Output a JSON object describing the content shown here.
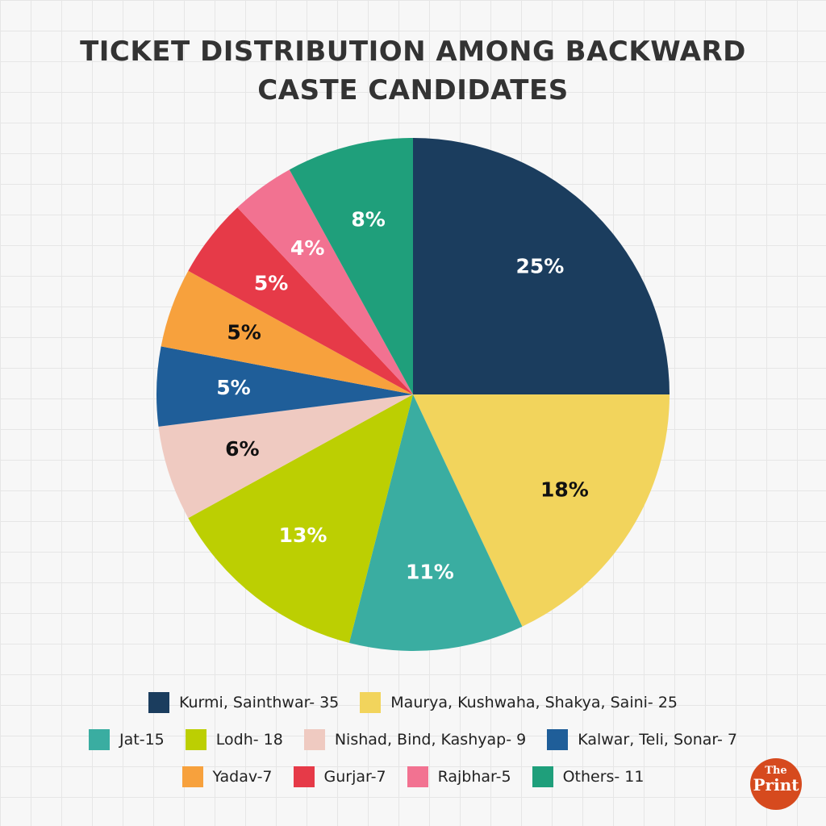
{
  "chart_data": {
    "type": "pie",
    "title": "TICKET DISTRIBUTION AMONG BACKWARD CASTE CANDIDATES",
    "categories": [
      "Kurmi, Sainthwar- 35",
      "Maurya, Kushwaha, Shakya, Saini- 25",
      "Jat-15",
      "Lodh- 18",
      "Nishad, Bind, Kashyap- 9",
      "Kalwar, Teli, Sonar- 7",
      "Yadav-7",
      "Gurjar-7",
      "Rajbhar-5",
      "Others- 11"
    ],
    "values": [
      25,
      18,
      11,
      13,
      6,
      5,
      5,
      5,
      4,
      8
    ],
    "value_labels": [
      "25%",
      "18%",
      "11%",
      "13%",
      "6%",
      "5%",
      "5%",
      "5%",
      "4%",
      "8%"
    ],
    "colors": [
      "#1b3d5e",
      "#f2d45c",
      "#3aada1",
      "#bccf02",
      "#efcac1",
      "#1f5e99",
      "#f7a13d",
      "#e63a48",
      "#f27291",
      "#1f9f7b"
    ],
    "label_colors": [
      "#ffffff",
      "#111111",
      "#ffffff",
      "#ffffff",
      "#111111",
      "#ffffff",
      "#111111",
      "#ffffff",
      "#ffffff",
      "#ffffff"
    ],
    "legend": "bottom"
  },
  "logo": {
    "line1": "The",
    "line2": "Print"
  }
}
